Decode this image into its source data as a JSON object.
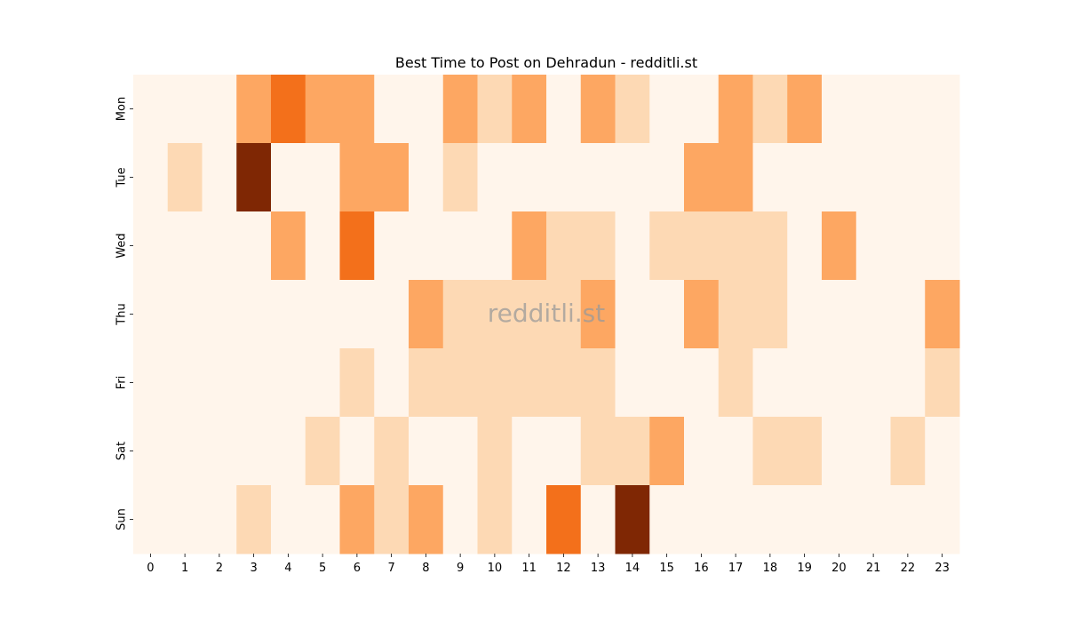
{
  "chart_data": {
    "type": "heatmap",
    "title": "Best Time to Post on Dehradun - redditli.st",
    "xlabel": "",
    "ylabel": "",
    "x": [
      "0",
      "1",
      "2",
      "3",
      "4",
      "5",
      "6",
      "7",
      "8",
      "9",
      "10",
      "11",
      "12",
      "13",
      "14",
      "15",
      "16",
      "17",
      "18",
      "19",
      "20",
      "21",
      "22",
      "23"
    ],
    "y": [
      "Mon",
      "Tue",
      "Wed",
      "Thu",
      "Fri",
      "Sat",
      "Sun"
    ],
    "values": [
      [
        0,
        0,
        0,
        2,
        3,
        2,
        2,
        0,
        0,
        2,
        1,
        2,
        0,
        2,
        1,
        0,
        0,
        2,
        1,
        2,
        0,
        0,
        0,
        0
      ],
      [
        0,
        1,
        0,
        5,
        0,
        0,
        2,
        2,
        0,
        1,
        0,
        0,
        0,
        0,
        0,
        0,
        2,
        2,
        0,
        0,
        0,
        0,
        0,
        0
      ],
      [
        0,
        0,
        0,
        0,
        2,
        0,
        3,
        0,
        0,
        0,
        0,
        2,
        1,
        1,
        0,
        1,
        1,
        1,
        1,
        0,
        2,
        0,
        0,
        0
      ],
      [
        0,
        0,
        0,
        0,
        0,
        0,
        0,
        0,
        2,
        1,
        1,
        1,
        1,
        2,
        0,
        0,
        2,
        1,
        1,
        0,
        0,
        0,
        0,
        2
      ],
      [
        0,
        0,
        0,
        0,
        0,
        0,
        1,
        0,
        1,
        1,
        1,
        1,
        1,
        1,
        0,
        0,
        0,
        1,
        0,
        0,
        0,
        0,
        0,
        1
      ],
      [
        0,
        0,
        0,
        0,
        0,
        1,
        0,
        1,
        0,
        0,
        1,
        0,
        0,
        1,
        1,
        2,
        0,
        0,
        1,
        1,
        0,
        0,
        1,
        0
      ],
      [
        0,
        0,
        0,
        1,
        0,
        0,
        2,
        1,
        2,
        0,
        1,
        0,
        3,
        0,
        5,
        0,
        0,
        0,
        0,
        0,
        0,
        0,
        0,
        0
      ]
    ],
    "colormap": "Oranges",
    "color_scale": [
      "#fff5eb",
      "#fdd9b4",
      "#fda762",
      "#f3701b",
      "#f3701b",
      "#7f2704"
    ],
    "grid": false,
    "colorbar": false,
    "watermark": "redditli.st"
  }
}
